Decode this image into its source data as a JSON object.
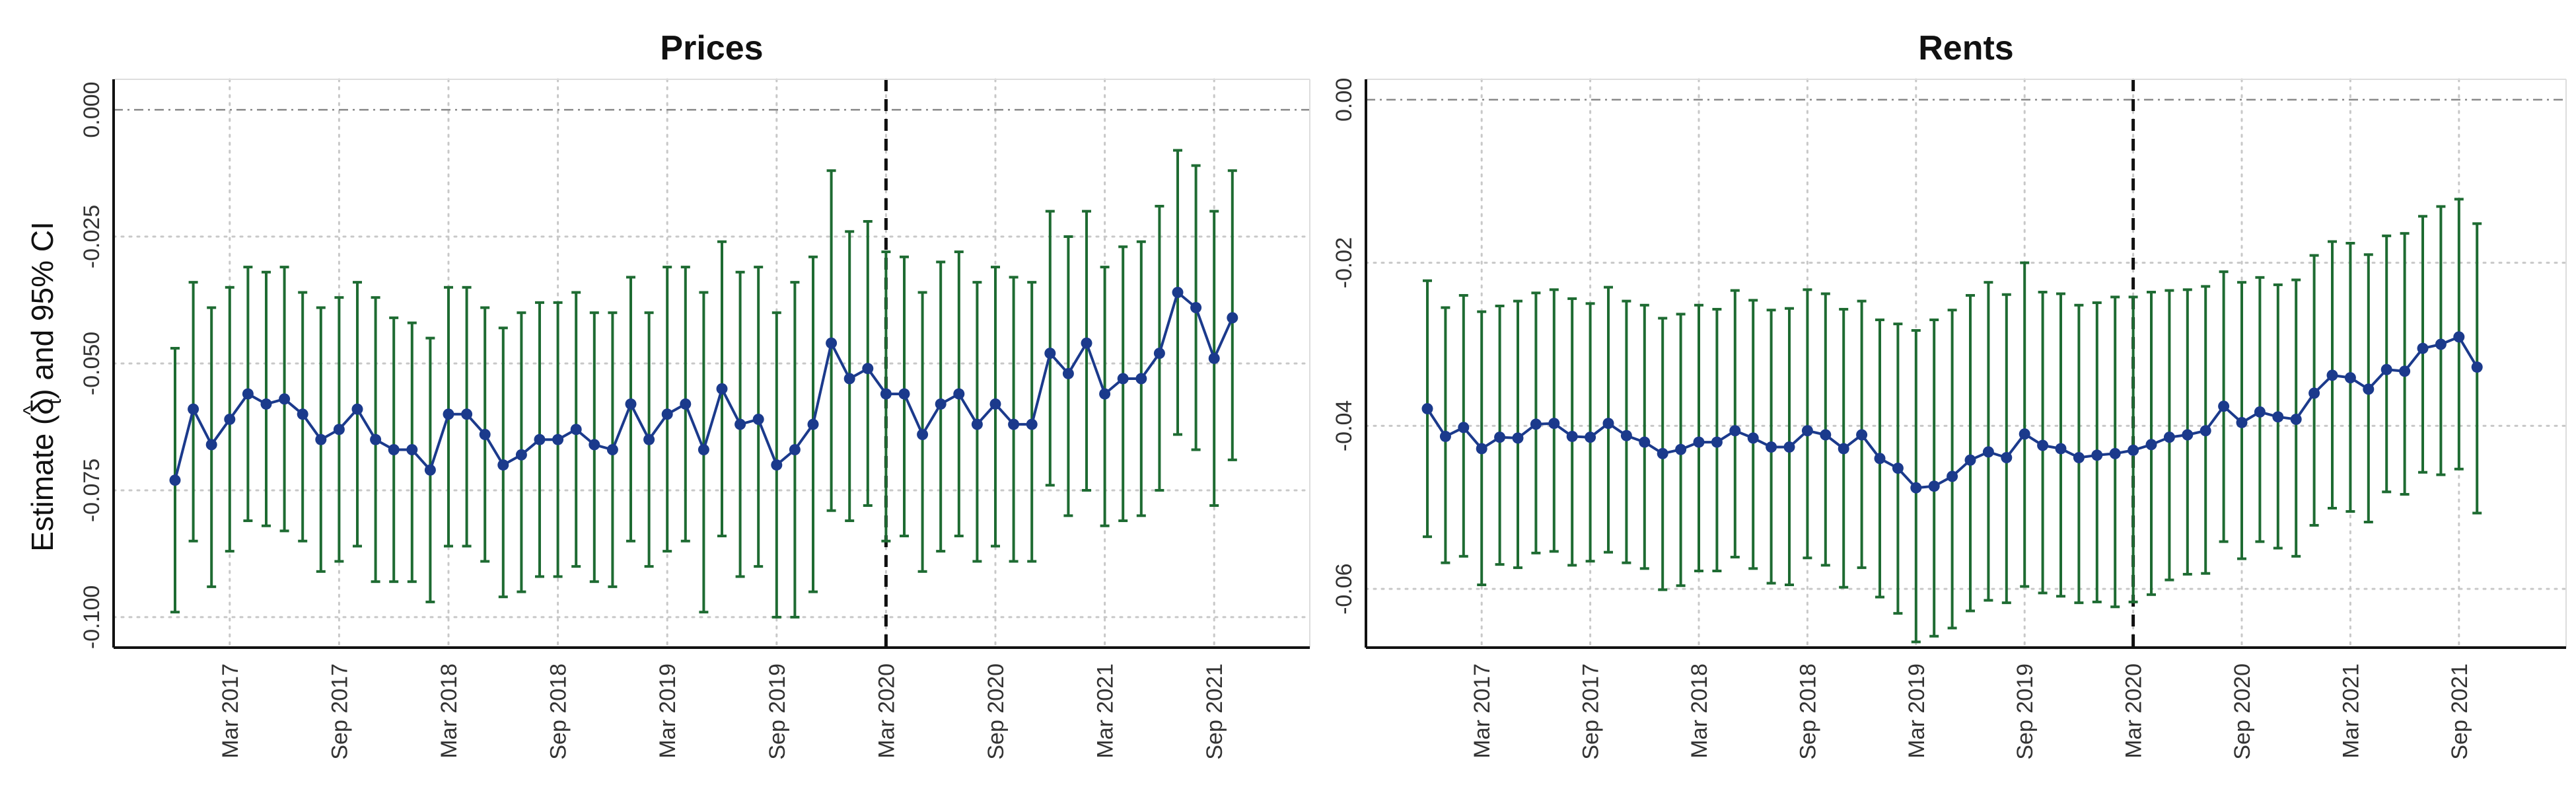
{
  "y_axis_label": {
    "prefix": "Estimate ",
    "open_paren": "(",
    "symbol": "δ",
    "hat": "^",
    "subscript": "t",
    "close_paren": ")",
    "suffix": " and 95% CI"
  },
  "colors": {
    "point": "#1b3a8c",
    "line": "#1b3a8c",
    "ci": "#1e6b32",
    "event_line": "#111111",
    "zero_line": "#888888",
    "grid": "#c8c8c8"
  },
  "chart_data": [
    {
      "type": "line",
      "title": "Prices",
      "x_start": "2016-12",
      "x_ticks": [
        "Mar 2017",
        "Sep 2017",
        "Mar 2018",
        "Sep 2018",
        "Mar 2019",
        "Sep 2019",
        "Mar 2020",
        "Sep 2020",
        "Mar 2021",
        "Sep 2021"
      ],
      "event_line_x": "Mar 2020",
      "y_ticks": [
        "0.000",
        "-0.025",
        "-0.050",
        "-0.075",
        "-0.100"
      ],
      "ylim": [
        -0.106,
        0.006
      ],
      "zero_line": 0,
      "grid": true,
      "series": [
        {
          "estimate": [
            -0.073,
            -0.059,
            -0.066,
            -0.061,
            -0.056,
            -0.058,
            -0.057,
            -0.06,
            -0.065,
            -0.063,
            -0.059,
            -0.065,
            -0.067,
            -0.067,
            -0.071,
            -0.06,
            -0.06,
            -0.064,
            -0.07,
            -0.068,
            -0.065,
            -0.065,
            -0.063,
            -0.066,
            -0.067,
            -0.058,
            -0.065,
            -0.06,
            -0.058,
            -0.067,
            -0.055,
            -0.062,
            -0.061,
            -0.07,
            -0.067,
            -0.062,
            -0.046,
            -0.053,
            -0.051,
            -0.056,
            -0.056,
            -0.064,
            -0.058,
            -0.056,
            -0.062,
            -0.058,
            -0.062,
            -0.062,
            -0.048,
            -0.052,
            -0.046,
            -0.056,
            -0.053,
            -0.053,
            -0.048,
            -0.036,
            -0.039,
            -0.049,
            -0.041
          ],
          "ci_lower": [
            -0.099,
            -0.085,
            -0.094,
            -0.087,
            -0.081,
            -0.082,
            -0.083,
            -0.085,
            -0.091,
            -0.089,
            -0.086,
            -0.093,
            -0.093,
            -0.093,
            -0.097,
            -0.086,
            -0.086,
            -0.089,
            -0.096,
            -0.095,
            -0.092,
            -0.092,
            -0.09,
            -0.093,
            -0.094,
            -0.085,
            -0.09,
            -0.087,
            -0.085,
            -0.099,
            -0.084,
            -0.092,
            -0.09,
            -0.1,
            -0.1,
            -0.095,
            -0.079,
            -0.081,
            -0.078,
            -0.085,
            -0.084,
            -0.091,
            -0.087,
            -0.084,
            -0.089,
            -0.086,
            -0.089,
            -0.089,
            -0.074,
            -0.08,
            -0.075,
            -0.082,
            -0.081,
            -0.08,
            -0.075,
            -0.064,
            -0.067,
            -0.078,
            -0.069
          ],
          "ci_upper": [
            -0.047,
            -0.034,
            -0.039,
            -0.035,
            -0.031,
            -0.032,
            -0.031,
            -0.036,
            -0.039,
            -0.037,
            -0.034,
            -0.037,
            -0.041,
            -0.042,
            -0.045,
            -0.035,
            -0.035,
            -0.039,
            -0.043,
            -0.04,
            -0.038,
            -0.038,
            -0.036,
            -0.04,
            -0.04,
            -0.033,
            -0.04,
            -0.031,
            -0.031,
            -0.036,
            -0.026,
            -0.032,
            -0.031,
            -0.04,
            -0.034,
            -0.029,
            -0.012,
            -0.024,
            -0.022,
            -0.028,
            -0.029,
            -0.036,
            -0.03,
            -0.028,
            -0.034,
            -0.031,
            -0.033,
            -0.034,
            -0.02,
            -0.025,
            -0.02,
            -0.031,
            -0.027,
            -0.026,
            -0.019,
            -0.008,
            -0.011,
            -0.02,
            -0.012
          ]
        }
      ]
    },
    {
      "type": "line",
      "title": "Rents",
      "x_start": "2016-12",
      "x_ticks": [
        "Mar 2017",
        "Sep 2017",
        "Mar 2018",
        "Sep 2018",
        "Mar 2019",
        "Sep 2019",
        "Mar 2020",
        "Sep 2020",
        "Mar 2021",
        "Sep 2021"
      ],
      "event_line_x": "Mar 2020",
      "y_ticks": [
        "0.00",
        "-0.02",
        "-0.04",
        "-0.06"
      ],
      "ylim": [
        -0.0672,
        0.0025
      ],
      "zero_line": 0,
      "grid": true,
      "series": [
        {
          "estimate": [
            -0.0379,
            -0.0413,
            -0.0402,
            -0.0428,
            -0.0414,
            -0.0415,
            -0.0398,
            -0.0397,
            -0.0413,
            -0.0414,
            -0.0397,
            -0.0412,
            -0.042,
            -0.0434,
            -0.0429,
            -0.042,
            -0.042,
            -0.0406,
            -0.0415,
            -0.0426,
            -0.0426,
            -0.0406,
            -0.0411,
            -0.0428,
            -0.0411,
            -0.044,
            -0.0452,
            -0.0476,
            -0.0474,
            -0.0462,
            -0.0442,
            -0.0432,
            -0.0439,
            -0.041,
            -0.0424,
            -0.0428,
            -0.0439,
            -0.0436,
            -0.0434,
            -0.043,
            -0.0423,
            -0.0414,
            -0.0411,
            -0.0406,
            -0.0376,
            -0.0396,
            -0.0383,
            -0.0389,
            -0.0392,
            -0.036,
            -0.0338,
            -0.0341,
            -0.0355,
            -0.0331,
            -0.0333,
            -0.0305,
            -0.03,
            -0.0291,
            -0.0328
          ],
          "ci_lower": [
            -0.0536,
            -0.0568,
            -0.056,
            -0.0595,
            -0.057,
            -0.0574,
            -0.0556,
            -0.0554,
            -0.0571,
            -0.0566,
            -0.0555,
            -0.0568,
            -0.0575,
            -0.0601,
            -0.0596,
            -0.0578,
            -0.0578,
            -0.0561,
            -0.0575,
            -0.0593,
            -0.0595,
            -0.0562,
            -0.0571,
            -0.0598,
            -0.0574,
            -0.061,
            -0.063,
            -0.0665,
            -0.0658,
            -0.0648,
            -0.0627,
            -0.0614,
            -0.0617,
            -0.0597,
            -0.0605,
            -0.0609,
            -0.0617,
            -0.0616,
            -0.0622,
            -0.0616,
            -0.0607,
            -0.0589,
            -0.0582,
            -0.0581,
            -0.0542,
            -0.0563,
            -0.0542,
            -0.055,
            -0.056,
            -0.0522,
            -0.0501,
            -0.0505,
            -0.0518,
            -0.0481,
            -0.0484,
            -0.0457,
            -0.046,
            -0.0453,
            -0.0507
          ],
          "ci_upper": [
            -0.0222,
            -0.0255,
            -0.024,
            -0.026,
            -0.0253,
            -0.0247,
            -0.0237,
            -0.0233,
            -0.0244,
            -0.025,
            -0.023,
            -0.0247,
            -0.0252,
            -0.0268,
            -0.0263,
            -0.0252,
            -0.0257,
            -0.0234,
            -0.0246,
            -0.0258,
            -0.0256,
            -0.0233,
            -0.0238,
            -0.0257,
            -0.0247,
            -0.027,
            -0.0275,
            -0.0283,
            -0.027,
            -0.0258,
            -0.024,
            -0.0224,
            -0.0239,
            -0.02,
            -0.0236,
            -0.0238,
            -0.0252,
            -0.0249,
            -0.0242,
            -0.0242,
            -0.0236,
            -0.0234,
            -0.0233,
            -0.0229,
            -0.0211,
            -0.0224,
            -0.0218,
            -0.0227,
            -0.0221,
            -0.0191,
            -0.0174,
            -0.0176,
            -0.019,
            -0.0167,
            -0.0164,
            -0.0143,
            -0.0131,
            -0.0122,
            -0.0152
          ]
        }
      ]
    }
  ]
}
